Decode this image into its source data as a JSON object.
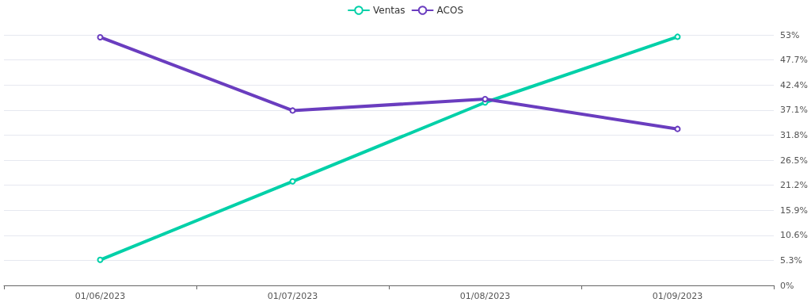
{
  "chart_data": {
    "type": "line",
    "categories": [
      "01/06/2023",
      "01/07/2023",
      "01/08/2023",
      "01/09/2023"
    ],
    "series": [
      {
        "name": "Ventas",
        "color": "#00d0a8",
        "values": [
          5.4,
          22.0,
          38.7,
          52.6
        ]
      },
      {
        "name": "ACOS",
        "color": "#6a3dbf",
        "values": [
          52.5,
          37.0,
          39.4,
          33.1
        ]
      }
    ],
    "ylim": [
      0,
      53
    ],
    "yticks": [
      {
        "value": 0,
        "label": "0%"
      },
      {
        "value": 5.3,
        "label": "5.3%"
      },
      {
        "value": 10.6,
        "label": "10.6%"
      },
      {
        "value": 15.9,
        "label": "15.9%"
      },
      {
        "value": 21.2,
        "label": "21.2%"
      },
      {
        "value": 26.5,
        "label": "26.5%"
      },
      {
        "value": 31.8,
        "label": "31.8%"
      },
      {
        "value": 37.1,
        "label": "37.1%"
      },
      {
        "value": 42.4,
        "label": "42.4%"
      },
      {
        "value": 47.7,
        "label": "47.7%"
      },
      {
        "value": 53,
        "label": "53%"
      }
    ],
    "grid": "y",
    "legend": "top",
    "marker": "circle",
    "line_style": "solid"
  }
}
